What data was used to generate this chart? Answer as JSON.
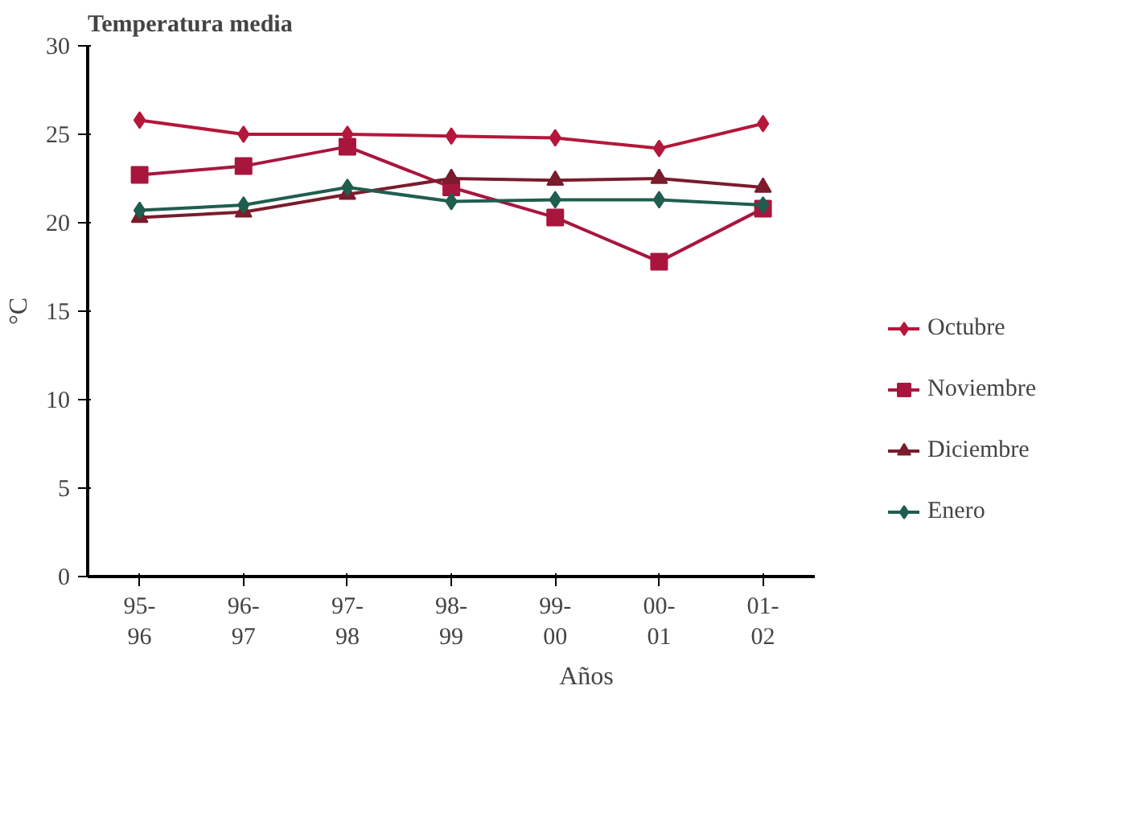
{
  "chart_data": {
    "type": "line",
    "title": "Temperatura media",
    "xlabel": "Años",
    "ylabel": "°C",
    "categories": [
      "95-\n96",
      "96-\n97",
      "97-\n98",
      "98-\n99",
      "99-\n00",
      "00-\n01",
      "01-\n02"
    ],
    "series": [
      {
        "name": "Octubre",
        "color": "#b5173a",
        "marker": "diamond",
        "values": [
          25.8,
          25.0,
          25.0,
          24.9,
          24.8,
          24.2,
          25.6
        ]
      },
      {
        "name": "Noviembre",
        "color": "#a8163e",
        "marker": "square",
        "values": [
          22.7,
          23.2,
          24.3,
          22.0,
          20.3,
          17.8,
          20.8
        ]
      },
      {
        "name": "Diciembre",
        "color": "#7a1c2c",
        "marker": "triangle",
        "values": [
          20.3,
          20.6,
          21.6,
          22.5,
          22.4,
          22.5,
          22.0
        ]
      },
      {
        "name": "Enero",
        "color": "#1f5e4e",
        "marker": "diamond",
        "values": [
          20.7,
          21.0,
          22.0,
          21.2,
          21.3,
          21.3,
          21.0
        ]
      }
    ],
    "ylim": [
      0,
      30
    ],
    "yticks": [
      0,
      5,
      10,
      15,
      20,
      25,
      30
    ],
    "grid": false,
    "legend": "right"
  }
}
